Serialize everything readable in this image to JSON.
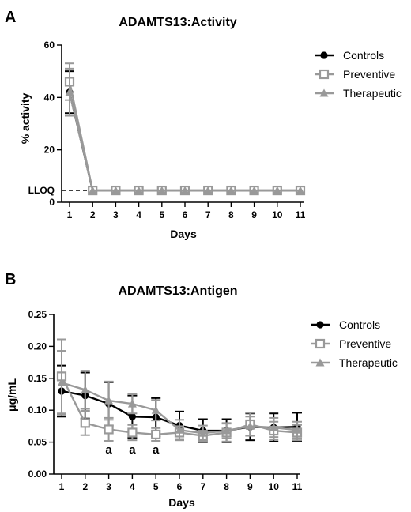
{
  "chart_data": [
    {
      "panel": "A",
      "type": "line",
      "title": "ADAMTS13:Activity",
      "xlabel": "Days",
      "ylabel": "% activity",
      "x": [
        1,
        2,
        3,
        4,
        5,
        6,
        7,
        8,
        9,
        10,
        11
      ],
      "xlim": [
        1,
        11
      ],
      "ylim": [
        0,
        60
      ],
      "yticks": [
        0,
        20,
        40,
        60
      ],
      "grid": false,
      "legend": "top-right",
      "reference_line": {
        "label": "LLOQ",
        "y": 4.5
      },
      "series": [
        {
          "name": "Controls",
          "marker": "filled-circle",
          "color": "#000000",
          "values": [
            42,
            4.5,
            4.5,
            4.5,
            4.5,
            4.5,
            4.5,
            4.5,
            4.5,
            4.5,
            4.5
          ],
          "error": [
            8,
            0,
            0,
            0,
            0,
            0,
            0,
            0,
            0,
            0,
            0
          ]
        },
        {
          "name": "Preventive",
          "marker": "open-square",
          "color": "#999999",
          "values": [
            46,
            4.5,
            4.5,
            4.5,
            4.5,
            4.5,
            4.5,
            4.5,
            4.5,
            4.5,
            4.5
          ],
          "error": [
            7,
            0,
            0,
            0,
            0,
            0,
            0,
            0,
            0,
            0,
            0
          ]
        },
        {
          "name": "Therapeutic",
          "marker": "filled-triangle",
          "color": "#999999",
          "values": [
            42,
            4.5,
            4.5,
            4.5,
            4.5,
            4.5,
            4.5,
            4.5,
            4.5,
            4.5,
            4.5
          ],
          "error": [
            9,
            0,
            0,
            0,
            0,
            0,
            0,
            0,
            0,
            0,
            0
          ]
        }
      ],
      "annotations": []
    },
    {
      "panel": "B",
      "type": "line",
      "title": "ADAMTS13:Antigen",
      "xlabel": "Days",
      "ylabel": "μg/mL",
      "x": [
        1,
        2,
        3,
        4,
        5,
        6,
        7,
        8,
        9,
        10,
        11
      ],
      "xlim": [
        1,
        11
      ],
      "ylim": [
        0,
        0.25
      ],
      "yticks": [
        "0.00",
        "0.05",
        "0.10",
        "0.15",
        "0.20",
        "0.25"
      ],
      "grid": false,
      "legend": "top-right",
      "series": [
        {
          "name": "Controls",
          "marker": "filled-circle",
          "color": "#000000",
          "values": [
            0.13,
            0.123,
            0.11,
            0.09,
            0.089,
            0.076,
            0.068,
            0.068,
            0.074,
            0.073,
            0.074
          ],
          "error": [
            0.04,
            0.036,
            0.034,
            0.033,
            0.03,
            0.022,
            0.018,
            0.018,
            0.021,
            0.022,
            0.022
          ]
        },
        {
          "name": "Preventive",
          "marker": "open-square",
          "color": "#999999",
          "values": [
            0.153,
            0.08,
            0.07,
            0.065,
            0.062,
            0.065,
            0.06,
            0.065,
            0.078,
            0.068,
            0.065
          ],
          "error": [
            0.058,
            0.019,
            0.018,
            0.012,
            0.01,
            0.01,
            0.008,
            0.014,
            0.018,
            0.014,
            0.012
          ]
        },
        {
          "name": "Therapeutic",
          "marker": "filled-triangle",
          "color": "#999999",
          "values": [
            0.143,
            0.132,
            0.115,
            0.11,
            0.1,
            0.069,
            0.064,
            0.068,
            0.075,
            0.073,
            0.069
          ],
          "error": [
            0.05,
            0.03,
            0.03,
            0.015,
            0.016,
            0.016,
            0.012,
            0.012,
            0.015,
            0.015,
            0.013
          ]
        }
      ],
      "annotations": [
        {
          "text": "a",
          "x": 3
        },
        {
          "text": "a",
          "x": 4
        },
        {
          "text": "a",
          "x": 5
        }
      ]
    }
  ]
}
